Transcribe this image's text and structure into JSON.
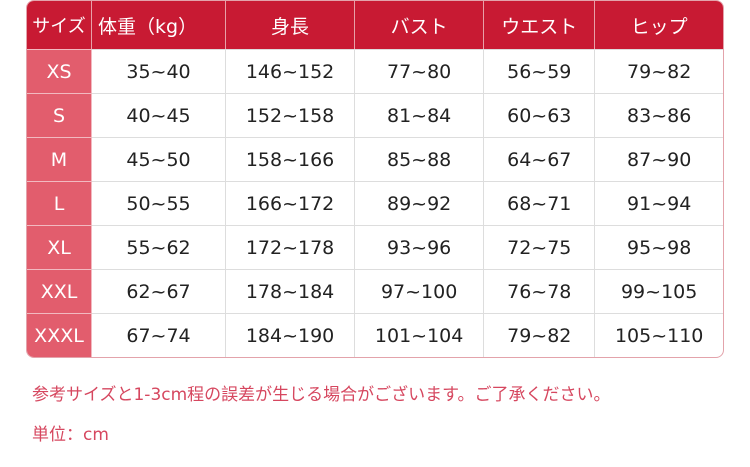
{
  "headers": [
    "サイズ",
    "体重（kg）",
    "身長",
    "バスト",
    "ウエスト",
    "ヒップ"
  ],
  "rows": [
    [
      "XS",
      "35~40",
      "146~152",
      "77~80",
      "56~59",
      "79~82"
    ],
    [
      "S",
      "40~45",
      "152~158",
      "81~84",
      "60~63",
      "83~86"
    ],
    [
      "M",
      "45~50",
      "158~166",
      "85~88",
      "64~67",
      "87~90"
    ],
    [
      "L",
      "50~55",
      "166~172",
      "89~92",
      "68~71",
      "91~94"
    ],
    [
      "XL",
      "55~62",
      "172~178",
      "93~96",
      "72~75",
      "95~98"
    ],
    [
      "XXL",
      "62~67",
      "178~184",
      "97~100",
      "76~78",
      "99~105"
    ],
    [
      "XXXL",
      "67~74",
      "184~190",
      "101~104",
      "79~82",
      "105~110"
    ]
  ],
  "notes": {
    "disclaimer": "参考サイズと1-3cm程の誤差が生じる場合がございます。ご了承ください。",
    "unit": "単位：cm"
  },
  "colors": {
    "header": "#c81a33",
    "size_column": "#e25d6d",
    "note_text": "#d6475f"
  }
}
